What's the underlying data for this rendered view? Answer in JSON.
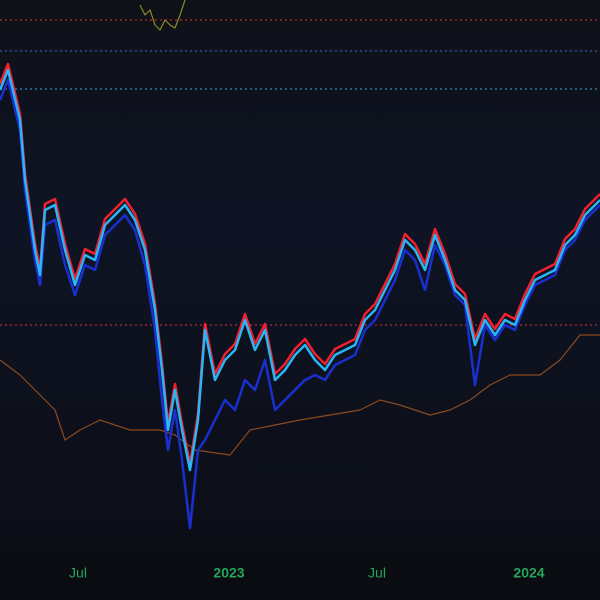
{
  "chart_data": {
    "type": "line",
    "xlim": [
      0,
      600
    ],
    "ylim": [
      553,
      0
    ],
    "xticks": [
      {
        "value": 78,
        "label": "Jul"
      },
      {
        "value": 229,
        "label": "2023"
      },
      {
        "value": 377,
        "label": "Jul"
      },
      {
        "value": 529,
        "label": "2024"
      }
    ],
    "hlines": [
      {
        "value": 20,
        "color": "#e0303a"
      },
      {
        "value": 51,
        "color": "#3a6fd8"
      },
      {
        "value": 89,
        "color": "#3aa8e0"
      },
      {
        "value": 325,
        "color": "#e0303a"
      }
    ],
    "series": [
      {
        "color": "#8b4a1e",
        "x": [
          0,
          20,
          40,
          55,
          65,
          80,
          100,
          130,
          160,
          175,
          195,
          230,
          250,
          275,
          300,
          330,
          360,
          380,
          400,
          430,
          450,
          470,
          490,
          510,
          540,
          560,
          580,
          600
        ],
        "values": [
          360,
          375,
          395,
          410,
          440,
          430,
          420,
          430,
          430,
          435,
          450,
          455,
          430,
          425,
          420,
          415,
          410,
          400,
          405,
          415,
          410,
          400,
          385,
          375,
          375,
          360,
          335,
          335
        ]
      },
      {
        "color": "#8a8a2a",
        "x": [
          140,
          145,
          150,
          155,
          160,
          165,
          170,
          175,
          180,
          185
        ],
        "values": [
          5,
          15,
          10,
          25,
          30,
          20,
          25,
          28,
          15,
          0
        ]
      },
      {
        "color": "#1a2fd0",
        "x": [
          0,
          8,
          20,
          25,
          35,
          40,
          45,
          55,
          65,
          75,
          85,
          95,
          105,
          115,
          125,
          135,
          145,
          155,
          162,
          168,
          175,
          182,
          190,
          198,
          205,
          215,
          225,
          235,
          245,
          255,
          265,
          275,
          285,
          295,
          305,
          315,
          325,
          335,
          345,
          355,
          365,
          375,
          385,
          395,
          405,
          415,
          425,
          435,
          445,
          455,
          465,
          475,
          485,
          495,
          505,
          515,
          525,
          535,
          545,
          555,
          565,
          575,
          585,
          595,
          600
        ],
        "values": [
          100,
          80,
          130,
          190,
          260,
          285,
          225,
          220,
          265,
          295,
          265,
          270,
          235,
          225,
          215,
          230,
          265,
          330,
          400,
          450,
          410,
          460,
          528,
          450,
          440,
          420,
          400,
          410,
          380,
          390,
          360,
          410,
          400,
          390,
          380,
          375,
          380,
          365,
          360,
          355,
          330,
          320,
          300,
          280,
          250,
          260,
          290,
          245,
          265,
          295,
          305,
          385,
          325,
          340,
          325,
          330,
          305,
          285,
          280,
          275,
          250,
          240,
          220,
          210,
          205
        ]
      },
      {
        "color": "#f0202e",
        "x": [
          0,
          8,
          20,
          25,
          35,
          40,
          45,
          55,
          65,
          75,
          85,
          95,
          105,
          115,
          125,
          135,
          145,
          155,
          162,
          168,
          175,
          182,
          190,
          198,
          205,
          215,
          225,
          235,
          245,
          255,
          265,
          275,
          285,
          295,
          305,
          315,
          325,
          335,
          345,
          355,
          365,
          375,
          385,
          395,
          405,
          415,
          425,
          435,
          445,
          455,
          465,
          475,
          485,
          495,
          505,
          515,
          525,
          535,
          545,
          555,
          565,
          575,
          585,
          595,
          600
        ],
        "values": [
          84,
          64,
          114,
          174,
          244,
          269,
          204,
          199,
          244,
          279,
          249,
          254,
          219,
          209,
          199,
          214,
          244,
          304,
          364,
          424,
          384,
          424,
          464,
          414,
          324,
          374,
          354,
          344,
          314,
          344,
          324,
          374,
          364,
          349,
          339,
          354,
          364,
          349,
          344,
          339,
          314,
          304,
          284,
          264,
          234,
          244,
          264,
          229,
          254,
          284,
          294,
          339,
          314,
          329,
          314,
          319,
          294,
          274,
          269,
          264,
          239,
          229,
          209,
          199,
          194
        ]
      },
      {
        "color": "#29b6f6",
        "x": [
          0,
          8,
          20,
          25,
          35,
          40,
          45,
          55,
          65,
          75,
          85,
          95,
          105,
          115,
          125,
          135,
          145,
          155,
          162,
          168,
          175,
          182,
          190,
          198,
          205,
          215,
          225,
          235,
          245,
          255,
          265,
          275,
          285,
          295,
          305,
          315,
          325,
          335,
          345,
          355,
          365,
          375,
          385,
          395,
          405,
          415,
          425,
          435,
          445,
          455,
          465,
          475,
          485,
          495,
          505,
          515,
          525,
          535,
          545,
          555,
          565,
          575,
          585,
          595,
          600
        ],
        "values": [
          90,
          70,
          120,
          180,
          250,
          275,
          210,
          205,
          250,
          285,
          255,
          260,
          225,
          215,
          205,
          220,
          250,
          310,
          370,
          430,
          390,
          430,
          470,
          420,
          330,
          380,
          360,
          350,
          320,
          350,
          330,
          380,
          370,
          355,
          345,
          360,
          370,
          355,
          350,
          345,
          320,
          310,
          290,
          270,
          240,
          250,
          270,
          235,
          260,
          290,
          300,
          345,
          320,
          335,
          320,
          325,
          300,
          280,
          275,
          270,
          245,
          235,
          215,
          205,
          200
        ]
      }
    ]
  }
}
